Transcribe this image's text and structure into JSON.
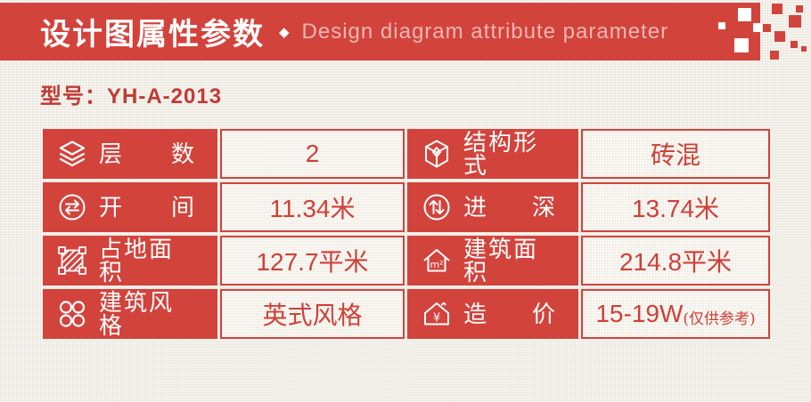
{
  "header": {
    "title_zh": "设计图属性参数",
    "separator": "◆",
    "title_en": "Design diagram attribute parameter"
  },
  "model": {
    "label": "型号：",
    "value": "YH-A-2013"
  },
  "colors": {
    "accent": "#d2433c",
    "value_text": "#cf4038",
    "english_title": "#f2b6b2",
    "model_text": "#c23a33",
    "page_background": "#f2efe8",
    "value_cell_background": "#f7f4ee"
  },
  "table": {
    "rows": [
      [
        {
          "key": "floors",
          "icon": "layers",
          "label": "层数",
          "spread": true,
          "value": "2",
          "note": ""
        },
        {
          "key": "structure",
          "icon": "cube",
          "label": "结构形式",
          "spread": false,
          "value": "砖混",
          "note": ""
        }
      ],
      [
        {
          "key": "bay-width",
          "icon": "horizontal-arrows",
          "label": "开间",
          "spread": true,
          "value": "11.34米",
          "note": ""
        },
        {
          "key": "depth",
          "icon": "vertical-arrows",
          "label": "进深",
          "spread": true,
          "value": "13.74米",
          "note": ""
        }
      ],
      [
        {
          "key": "land-area",
          "icon": "hatched-area",
          "label": "占地面积",
          "spread": false,
          "value": "127.7平米",
          "note": ""
        },
        {
          "key": "building-area",
          "icon": "house-area",
          "label": "建筑面积",
          "spread": false,
          "value": "214.8平米",
          "note": ""
        }
      ],
      [
        {
          "key": "style",
          "icon": "four-circles",
          "label": "建筑风格",
          "spread": false,
          "value": "英式风格",
          "note": ""
        },
        {
          "key": "price",
          "icon": "house-price",
          "label": "造价",
          "spread": true,
          "value": "15-19W",
          "note": "(仅供参考)"
        }
      ]
    ]
  }
}
